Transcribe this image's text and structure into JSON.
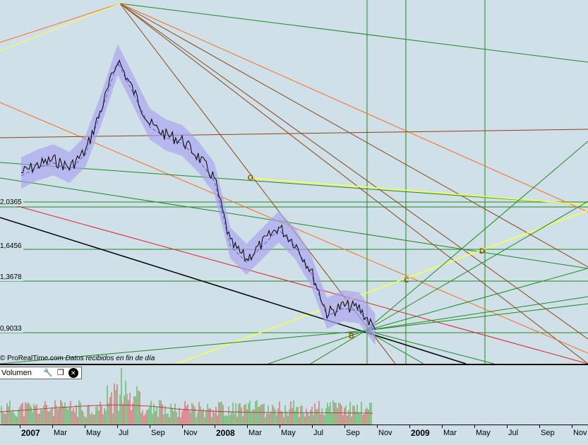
{
  "price_chart": {
    "y_labels": [
      "2,0365",
      "1,6456",
      "1,3678",
      "0,9033"
    ],
    "copyright": "© ProRealTime.com",
    "copyright_note": "Datos recibidos en fin de día",
    "point_labels": [
      "G",
      "C",
      "D",
      "B"
    ]
  },
  "volume_panel": {
    "title": "Volumen",
    "wrench_icon": "wrench-icon",
    "window_icon": "window-icon",
    "close_icon": "close-icon"
  },
  "x_axis": {
    "ticks": [
      {
        "label": "2007",
        "year": true
      },
      {
        "label": "Mar",
        "year": false
      },
      {
        "label": "May",
        "year": false
      },
      {
        "label": "Jul",
        "year": false
      },
      {
        "label": "Sep",
        "year": false
      },
      {
        "label": "Nov",
        "year": false
      },
      {
        "label": "2008",
        "year": true
      },
      {
        "label": "Mar",
        "year": false
      },
      {
        "label": "May",
        "year": false
      },
      {
        "label": "Jul",
        "year": false
      },
      {
        "label": "Sep",
        "year": false
      },
      {
        "label": "Nov",
        "year": false
      },
      {
        "label": "2009",
        "year": true
      },
      {
        "label": "Mar",
        "year": false
      },
      {
        "label": "May",
        "year": false
      },
      {
        "label": "Jul",
        "year": false
      },
      {
        "label": "Sep",
        "year": false
      },
      {
        "label": "Nov",
        "year": false
      }
    ]
  },
  "colors": {
    "background": "#cfe0e8",
    "price": "#000000",
    "band": "#a9a2ee",
    "green_lines": "#1f8a1f",
    "brown_lines": "#8b4513",
    "orange_lines": "#ff6a1a",
    "yellow_lines": "#ffff40",
    "red_line": "#e02020",
    "volume_green": "#2bb02b",
    "volume_red": "#e04040"
  },
  "chart_data": {
    "type": "line",
    "title": "",
    "series": [
      {
        "points": [
          [
            "2007-01",
            2.35
          ],
          [
            "2007-02",
            2.42
          ],
          [
            "2007-03",
            2.47
          ],
          [
            "2007-04",
            2.4
          ],
          [
            "2007-05",
            2.55
          ],
          [
            "2007-06",
            2.95
          ],
          [
            "2007-07",
            3.4
          ],
          [
            "2007-08",
            3.1
          ],
          [
            "2007-09",
            2.8
          ],
          [
            "2007-10",
            2.7
          ],
          [
            "2007-11",
            2.65
          ],
          [
            "2007-12",
            2.5
          ],
          [
            "2008-01",
            2.3
          ],
          [
            "2008-02",
            1.7
          ],
          [
            "2008-03",
            1.55
          ],
          [
            "2008-04",
            1.7
          ],
          [
            "2008-05",
            1.85
          ],
          [
            "2008-06",
            1.7
          ],
          [
            "2008-07",
            1.45
          ],
          [
            "2008-08",
            1.05
          ],
          [
            "2008-09",
            1.12
          ],
          [
            "2008-10",
            1.1
          ],
          [
            "2008-11",
            0.9
          ]
        ]
      }
    ],
    "y_ticks": [
      2.0365,
      1.6456,
      1.3678,
      0.9033
    ],
    "x_ticks": [
      "2007",
      "Mar",
      "May",
      "Jul",
      "Sep",
      "Nov",
      "2008",
      "Mar",
      "May",
      "Jul",
      "Sep",
      "Nov",
      "2009",
      "Mar",
      "May",
      "Jul",
      "Sep",
      "Nov"
    ],
    "annotations": [
      "G",
      "C",
      "D",
      "B"
    ],
    "grid": false
  }
}
